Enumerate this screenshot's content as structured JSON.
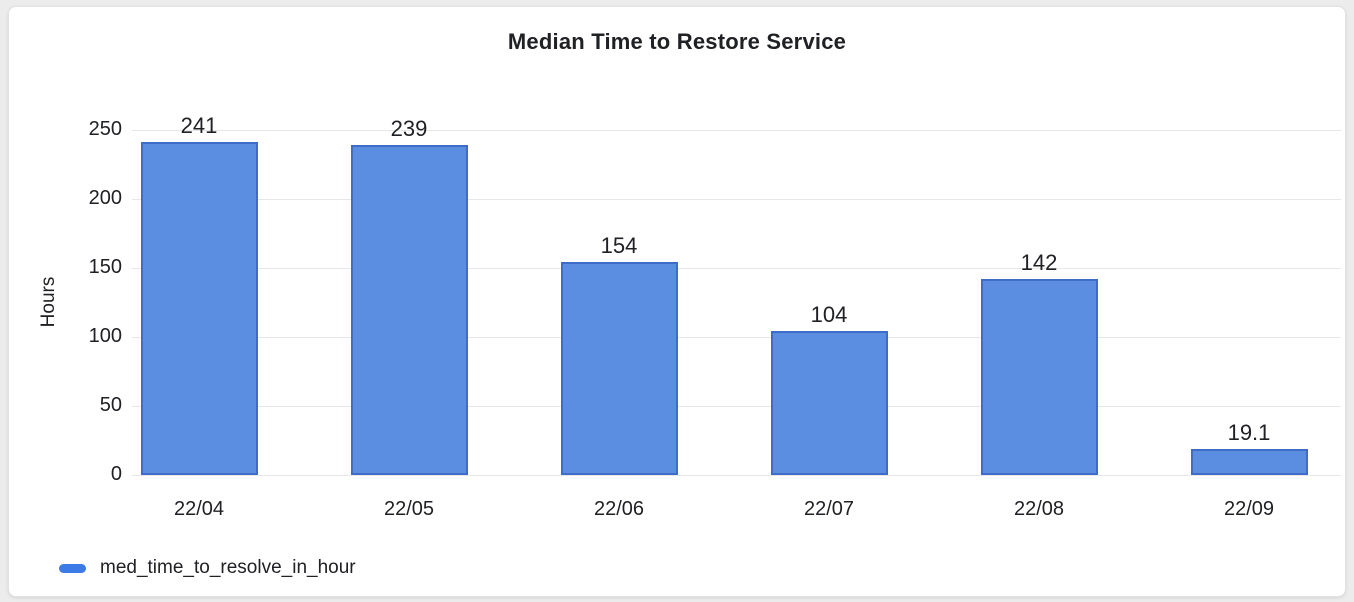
{
  "page": {
    "background_color": "#ececec"
  },
  "card": {
    "background_color": "#ffffff",
    "border_color": "#e2e2e2"
  },
  "chart_data": {
    "type": "bar",
    "title": "Median Time to Restore Service",
    "xlabel": "",
    "ylabel": "Hours",
    "categories": [
      "22/04",
      "22/05",
      "22/06",
      "22/07",
      "22/08",
      "22/09"
    ],
    "series": [
      {
        "name": "med_time_to_resolve_in_hour",
        "values": [
          241,
          239,
          154,
          104,
          142,
          19.1
        ]
      }
    ],
    "value_labels": [
      "241",
      "239",
      "154",
      "104",
      "142",
      "19.1"
    ],
    "y_ticks": [
      0,
      50,
      100,
      150,
      200,
      250
    ],
    "ylim": [
      0,
      250
    ],
    "grid": true,
    "legend_position": "bottom-left",
    "colors": {
      "bar_fill": "#5b8de0",
      "bar_border": "#3f6cc7",
      "legend_marker": "#3d7ae5",
      "text": "#202124",
      "grid": "#e7e7e7"
    }
  }
}
